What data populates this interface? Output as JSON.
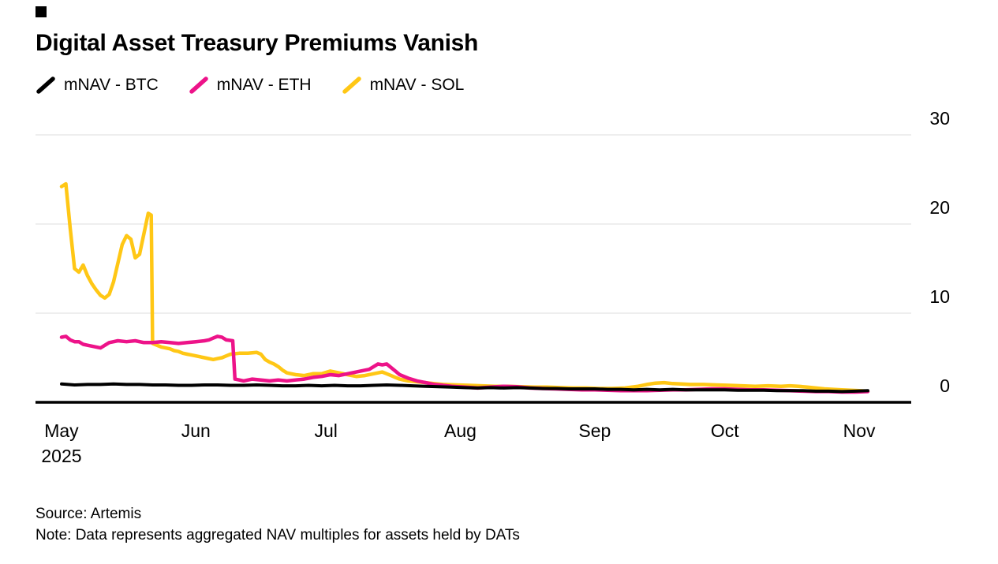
{
  "page": {
    "background": "#ffffff",
    "text_color": "#000000",
    "gridline_color": "#dcdcdc"
  },
  "chart_data": {
    "type": "line",
    "title": "Digital Asset Treasury Premiums Vanish",
    "source": "Source: Artemis",
    "note": "Note: Data represents aggregated NAV multiples for assets held by DATs",
    "legend_position": "top-left",
    "grid": "horizontal",
    "x_axis": {
      "unit": "days since 2025-05-01",
      "tick_labels": [
        "May",
        "Jun",
        "Jul",
        "Aug",
        "Sep",
        "Oct",
        "Nov"
      ],
      "tick_days": [
        0,
        31,
        61,
        92,
        123,
        153,
        184
      ],
      "year_label": "2025",
      "domain_days": [
        -6,
        196
      ]
    },
    "y_axis": {
      "ticks": [
        0,
        10,
        20,
        30
      ],
      "range": [
        0,
        32.3
      ],
      "side": "right"
    },
    "series": [
      {
        "id": "btc",
        "name": "mNAV - BTC",
        "color": "#000000",
        "stroke_width": 4,
        "points": [
          [
            0,
            2.05
          ],
          [
            3,
            1.95
          ],
          [
            6,
            2.0
          ],
          [
            9,
            2.0
          ],
          [
            12,
            2.05
          ],
          [
            15,
            2.0
          ],
          [
            18,
            2.0
          ],
          [
            21,
            1.95
          ],
          [
            24,
            1.95
          ],
          [
            27,
            1.9
          ],
          [
            30,
            1.9
          ],
          [
            33,
            1.95
          ],
          [
            36,
            1.95
          ],
          [
            39,
            1.9
          ],
          [
            42,
            1.9
          ],
          [
            45,
            1.95
          ],
          [
            48,
            1.9
          ],
          [
            51,
            1.85
          ],
          [
            54,
            1.85
          ],
          [
            57,
            1.9
          ],
          [
            60,
            1.85
          ],
          [
            63,
            1.9
          ],
          [
            66,
            1.85
          ],
          [
            69,
            1.85
          ],
          [
            72,
            1.9
          ],
          [
            75,
            1.95
          ],
          [
            78,
            1.9
          ],
          [
            81,
            1.85
          ],
          [
            84,
            1.8
          ],
          [
            87,
            1.75
          ],
          [
            90,
            1.7
          ],
          [
            93,
            1.65
          ],
          [
            96,
            1.6
          ],
          [
            99,
            1.65
          ],
          [
            102,
            1.6
          ],
          [
            105,
            1.65
          ],
          [
            108,
            1.6
          ],
          [
            111,
            1.55
          ],
          [
            114,
            1.55
          ],
          [
            117,
            1.5
          ],
          [
            120,
            1.5
          ],
          [
            123,
            1.5
          ],
          [
            126,
            1.45
          ],
          [
            129,
            1.45
          ],
          [
            132,
            1.4
          ],
          [
            135,
            1.45
          ],
          [
            138,
            1.4
          ],
          [
            141,
            1.45
          ],
          [
            144,
            1.4
          ],
          [
            147,
            1.4
          ],
          [
            150,
            1.4
          ],
          [
            153,
            1.4
          ],
          [
            156,
            1.35
          ],
          [
            159,
            1.35
          ],
          [
            162,
            1.35
          ],
          [
            165,
            1.3
          ],
          [
            168,
            1.3
          ],
          [
            171,
            1.3
          ],
          [
            174,
            1.25
          ],
          [
            177,
            1.25
          ],
          [
            180,
            1.2
          ],
          [
            183,
            1.25
          ],
          [
            186,
            1.3
          ]
        ]
      },
      {
        "id": "eth",
        "name": "mNAV - ETH",
        "color": "#ED1389",
        "stroke_width": 4.5,
        "points": [
          [
            0,
            7.3
          ],
          [
            1,
            7.4
          ],
          [
            2,
            7.0
          ],
          [
            3,
            6.8
          ],
          [
            4,
            6.8
          ],
          [
            5,
            6.5
          ],
          [
            6,
            6.4
          ],
          [
            7,
            6.3
          ],
          [
            8,
            6.2
          ],
          [
            9,
            6.1
          ],
          [
            10,
            6.4
          ],
          [
            11,
            6.7
          ],
          [
            12,
            6.8
          ],
          [
            13,
            6.9
          ],
          [
            15,
            6.8
          ],
          [
            17,
            6.9
          ],
          [
            19,
            6.7
          ],
          [
            21,
            6.7
          ],
          [
            23,
            6.8
          ],
          [
            25,
            6.7
          ],
          [
            27,
            6.6
          ],
          [
            29,
            6.7
          ],
          [
            31,
            6.8
          ],
          [
            33,
            6.9
          ],
          [
            34,
            7.0
          ],
          [
            35,
            7.2
          ],
          [
            36,
            7.4
          ],
          [
            37,
            7.3
          ],
          [
            38,
            7.0
          ],
          [
            39.5,
            6.9
          ],
          [
            40,
            2.6
          ],
          [
            41,
            2.5
          ],
          [
            42,
            2.4
          ],
          [
            44,
            2.6
          ],
          [
            46,
            2.5
          ],
          [
            48,
            2.4
          ],
          [
            50,
            2.5
          ],
          [
            52,
            2.4
          ],
          [
            54,
            2.5
          ],
          [
            56,
            2.6
          ],
          [
            58,
            2.8
          ],
          [
            60,
            2.9
          ],
          [
            62,
            3.1
          ],
          [
            64,
            3.0
          ],
          [
            66,
            3.2
          ],
          [
            68,
            3.4
          ],
          [
            70,
            3.6
          ],
          [
            71,
            3.7
          ],
          [
            72,
            4.0
          ],
          [
            73,
            4.3
          ],
          [
            74,
            4.2
          ],
          [
            75,
            4.3
          ],
          [
            76,
            3.9
          ],
          [
            77,
            3.5
          ],
          [
            78,
            3.1
          ],
          [
            80,
            2.7
          ],
          [
            82,
            2.4
          ],
          [
            84,
            2.2
          ],
          [
            86,
            2.0
          ],
          [
            88,
            1.9
          ],
          [
            90,
            1.8
          ],
          [
            93,
            1.7
          ],
          [
            96,
            1.6
          ],
          [
            99,
            1.7
          ],
          [
            102,
            1.8
          ],
          [
            105,
            1.75
          ],
          [
            108,
            1.6
          ],
          [
            111,
            1.55
          ],
          [
            114,
            1.5
          ],
          [
            117,
            1.45
          ],
          [
            120,
            1.4
          ],
          [
            123,
            1.4
          ],
          [
            126,
            1.35
          ],
          [
            129,
            1.3
          ],
          [
            132,
            1.3
          ],
          [
            135,
            1.3
          ],
          [
            138,
            1.35
          ],
          [
            141,
            1.4
          ],
          [
            144,
            1.4
          ],
          [
            147,
            1.45
          ],
          [
            150,
            1.5
          ],
          [
            153,
            1.5
          ],
          [
            156,
            1.45
          ],
          [
            159,
            1.4
          ],
          [
            162,
            1.4
          ],
          [
            165,
            1.35
          ],
          [
            168,
            1.3
          ],
          [
            171,
            1.25
          ],
          [
            174,
            1.2
          ],
          [
            177,
            1.2
          ],
          [
            180,
            1.15
          ],
          [
            183,
            1.15
          ],
          [
            186,
            1.2
          ]
        ]
      },
      {
        "id": "sol",
        "name": "mNAV - SOL",
        "color": "#FFC715",
        "stroke_width": 4.5,
        "points": [
          [
            0,
            24.2
          ],
          [
            1,
            24.5
          ],
          [
            2,
            19.5
          ],
          [
            3,
            15.0
          ],
          [
            4,
            14.6
          ],
          [
            5,
            15.4
          ],
          [
            6,
            14.2
          ],
          [
            7,
            13.3
          ],
          [
            8,
            12.6
          ],
          [
            9,
            12.0
          ],
          [
            10,
            11.7
          ],
          [
            11,
            12.1
          ],
          [
            12,
            13.5
          ],
          [
            13,
            15.6
          ],
          [
            14,
            17.7
          ],
          [
            15,
            18.7
          ],
          [
            16,
            18.3
          ],
          [
            17,
            16.2
          ],
          [
            18,
            16.6
          ],
          [
            19,
            18.9
          ],
          [
            20,
            21.2
          ],
          [
            20.7,
            21.0
          ],
          [
            21,
            6.6
          ],
          [
            22,
            6.4
          ],
          [
            23,
            6.2
          ],
          [
            24,
            6.1
          ],
          [
            25,
            6.0
          ],
          [
            26,
            5.8
          ],
          [
            27,
            5.7
          ],
          [
            28,
            5.5
          ],
          [
            29,
            5.4
          ],
          [
            30,
            5.3
          ],
          [
            31,
            5.2
          ],
          [
            33,
            5.0
          ],
          [
            35,
            4.8
          ],
          [
            36,
            4.9
          ],
          [
            37,
            5.0
          ],
          [
            38,
            5.2
          ],
          [
            39,
            5.4
          ],
          [
            41,
            5.5
          ],
          [
            43,
            5.5
          ],
          [
            45,
            5.6
          ],
          [
            46,
            5.4
          ],
          [
            47,
            4.8
          ],
          [
            48,
            4.5
          ],
          [
            49,
            4.3
          ],
          [
            50,
            4.0
          ],
          [
            51,
            3.6
          ],
          [
            52,
            3.3
          ],
          [
            54,
            3.1
          ],
          [
            56,
            3.0
          ],
          [
            58,
            3.2
          ],
          [
            60,
            3.2
          ],
          [
            62,
            3.5
          ],
          [
            64,
            3.3
          ],
          [
            66,
            3.1
          ],
          [
            68,
            2.9
          ],
          [
            70,
            3.0
          ],
          [
            72,
            3.2
          ],
          [
            74,
            3.4
          ],
          [
            75,
            3.2
          ],
          [
            76,
            3.0
          ],
          [
            77,
            2.8
          ],
          [
            78,
            2.6
          ],
          [
            80,
            2.4
          ],
          [
            82,
            2.3
          ],
          [
            84,
            2.2
          ],
          [
            86,
            2.1
          ],
          [
            88,
            2.0
          ],
          [
            91,
            1.95
          ],
          [
            94,
            1.9
          ],
          [
            97,
            1.85
          ],
          [
            100,
            1.8
          ],
          [
            103,
            1.8
          ],
          [
            106,
            1.75
          ],
          [
            109,
            1.7
          ],
          [
            112,
            1.7
          ],
          [
            115,
            1.65
          ],
          [
            118,
            1.6
          ],
          [
            121,
            1.6
          ],
          [
            124,
            1.55
          ],
          [
            127,
            1.55
          ],
          [
            130,
            1.6
          ],
          [
            133,
            1.8
          ],
          [
            135,
            2.0
          ],
          [
            137,
            2.15
          ],
          [
            139,
            2.2
          ],
          [
            141,
            2.1
          ],
          [
            143,
            2.05
          ],
          [
            145,
            2.0
          ],
          [
            148,
            2.0
          ],
          [
            151,
            1.95
          ],
          [
            154,
            1.9
          ],
          [
            157,
            1.85
          ],
          [
            160,
            1.8
          ],
          [
            163,
            1.85
          ],
          [
            166,
            1.8
          ],
          [
            168,
            1.85
          ],
          [
            170,
            1.8
          ],
          [
            172,
            1.7
          ],
          [
            174,
            1.6
          ],
          [
            176,
            1.5
          ],
          [
            178,
            1.45
          ],
          [
            180,
            1.4
          ],
          [
            182,
            1.35
          ],
          [
            184,
            1.3
          ],
          [
            186,
            1.25
          ]
        ]
      }
    ]
  }
}
